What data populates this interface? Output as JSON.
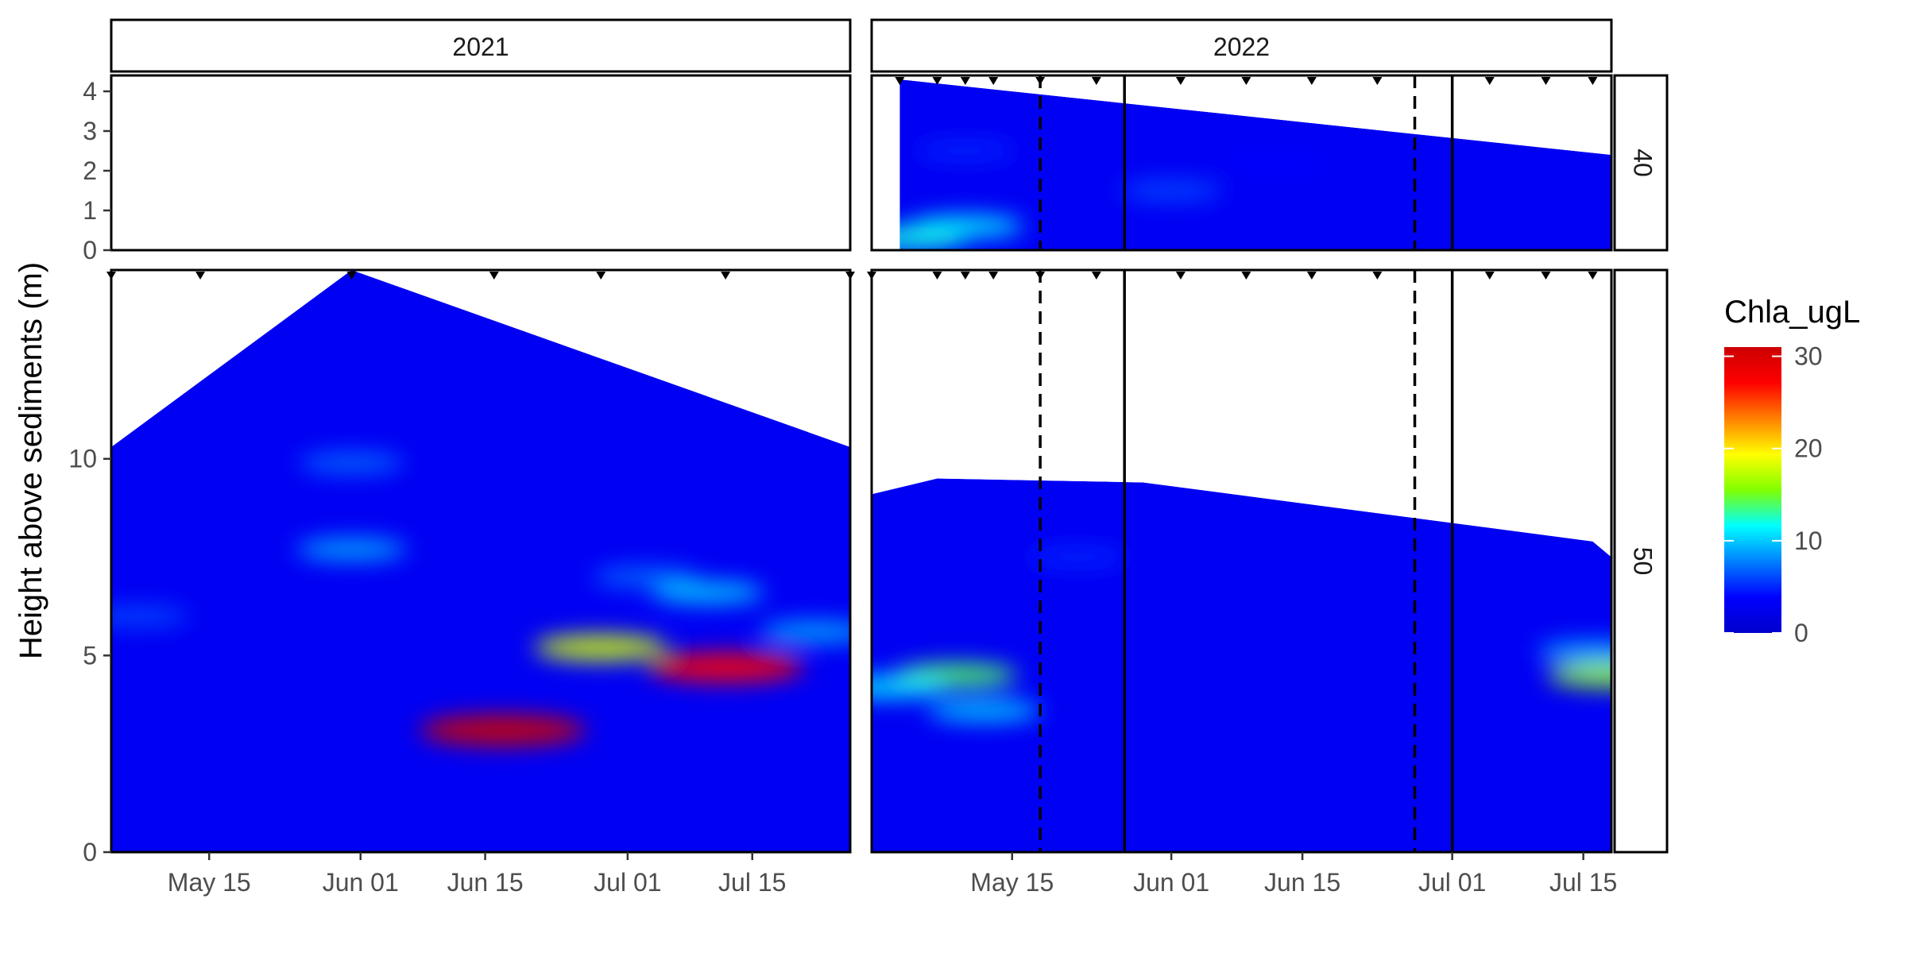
{
  "chart_data": {
    "type": "heatmap",
    "title": "",
    "ylabel": "Height above sediments (m)",
    "xlabel": "",
    "fill_variable": "Chla_ugL",
    "legend": {
      "title": "Chla_ugL",
      "placement": "right",
      "range": [
        0,
        31
      ],
      "ticks": [
        "0",
        "10",
        "20",
        "30"
      ],
      "tick_values": [
        0,
        10,
        20,
        30
      ],
      "colors": [
        "#0000cc",
        "#0000ff",
        "#0080ff",
        "#00ffff",
        "#80ff00",
        "#ffff00",
        "#ff8000",
        "#ff0000",
        "#cc0000"
      ]
    },
    "column_facets": [
      "2021",
      "2022"
    ],
    "row_facets": [
      "40",
      "50"
    ],
    "y_ticks": {
      "40": [
        "0",
        "1",
        "2",
        "3",
        "4"
      ],
      "50": [
        "0",
        "5",
        "10"
      ]
    },
    "x_ticks": {
      "2021": [
        "May 15",
        "Jun 01",
        "Jun 15",
        "Jul 01",
        "Jul 15"
      ],
      "2022": [
        "May 15",
        "Jun 01",
        "Jun 15",
        "Jul 01",
        "Jul 15"
      ]
    },
    "x_range": {
      "2021": [
        "2021-05-04",
        "2021-07-26"
      ],
      "2022": [
        "2022-04-30",
        "2022-07-18"
      ]
    },
    "y_range": {
      "40": [
        0,
        4.4
      ],
      "50": [
        0,
        14.8
      ]
    },
    "grid": false,
    "panels": [
      {
        "year": "2021",
        "site": "40",
        "empty": true
      },
      {
        "year": "2022",
        "site": "40",
        "surface": [
          [
            "2022-05-03",
            4.3
          ],
          [
            "2022-07-18",
            2.4
          ]
        ],
        "sample_dates": [
          "2022-05-03",
          "2022-05-07",
          "2022-05-10",
          "2022-05-13",
          "2022-05-18",
          "2022-05-24",
          "2022-06-02",
          "2022-06-09",
          "2022-06-16",
          "2022-06-23",
          "2022-07-05",
          "2022-07-11",
          "2022-07-16"
        ],
        "hotspots": [
          {
            "date": "2022-05-10",
            "depth": 0.6,
            "chla": 11
          },
          {
            "date": "2022-05-04",
            "depth": 0.3,
            "chla": 12
          },
          {
            "date": "2022-05-10",
            "depth": 2.5,
            "chla": 5
          },
          {
            "date": "2022-06-01",
            "depth": 1.5,
            "chla": 6
          },
          {
            "date": "2022-06-12",
            "depth": 2.2,
            "chla": 4
          }
        ]
      },
      {
        "year": "2021",
        "site": "50",
        "surface": [
          [
            "2021-05-04",
            10.3
          ],
          [
            "2021-05-31",
            14.8
          ],
          [
            "2021-07-26",
            10.3
          ]
        ],
        "sample_dates": [
          "2021-05-04",
          "2021-05-14",
          "2021-05-31",
          "2021-06-16",
          "2021-06-28",
          "2021-07-12",
          "2021-07-26"
        ],
        "hotspots": [
          {
            "date": "2021-05-31",
            "depth": 7.7,
            "chla": 9
          },
          {
            "date": "2021-05-31",
            "depth": 9.9,
            "chla": 7
          },
          {
            "date": "2021-07-03",
            "depth": 7.0,
            "chla": 7
          },
          {
            "date": "2021-07-10",
            "depth": 6.6,
            "chla": 10
          },
          {
            "date": "2021-06-28",
            "depth": 5.2,
            "chla": 18
          },
          {
            "date": "2021-07-12",
            "depth": 4.7,
            "chla": 27
          },
          {
            "date": "2021-06-17",
            "depth": 3.1,
            "chla": 31
          },
          {
            "date": "2021-07-22",
            "depth": 5.6,
            "chla": 9
          },
          {
            "date": "2021-05-07",
            "depth": 6.0,
            "chla": 6
          }
        ]
      },
      {
        "year": "2022",
        "site": "50",
        "surface": [
          [
            "2022-04-30",
            9.1
          ],
          [
            "2022-05-07",
            9.5
          ],
          [
            "2022-05-29",
            9.4
          ],
          [
            "2022-07-16",
            7.9
          ],
          [
            "2022-07-18",
            7.5
          ]
        ],
        "sample_dates": [
          "2022-04-30",
          "2022-05-07",
          "2022-05-10",
          "2022-05-13",
          "2022-05-18",
          "2022-05-24",
          "2022-06-02",
          "2022-06-09",
          "2022-06-16",
          "2022-06-23",
          "2022-07-05",
          "2022-07-11",
          "2022-07-16"
        ],
        "hotspots": [
          {
            "date": "2022-05-09",
            "depth": 4.5,
            "chla": 14
          },
          {
            "date": "2022-05-02",
            "depth": 4.2,
            "chla": 11
          },
          {
            "date": "2022-05-12",
            "depth": 3.6,
            "chla": 10
          },
          {
            "date": "2022-05-22",
            "depth": 7.5,
            "chla": 5
          },
          {
            "date": "2022-07-16",
            "depth": 5.1,
            "chla": 9
          },
          {
            "date": "2022-07-18",
            "depth": 4.5,
            "chla": 16
          }
        ]
      }
    ],
    "vlines_2022": {
      "dashed": [
        "2022-05-18",
        "2022-06-27"
      ],
      "solid": [
        "2022-05-27",
        "2022-07-01"
      ]
    }
  }
}
